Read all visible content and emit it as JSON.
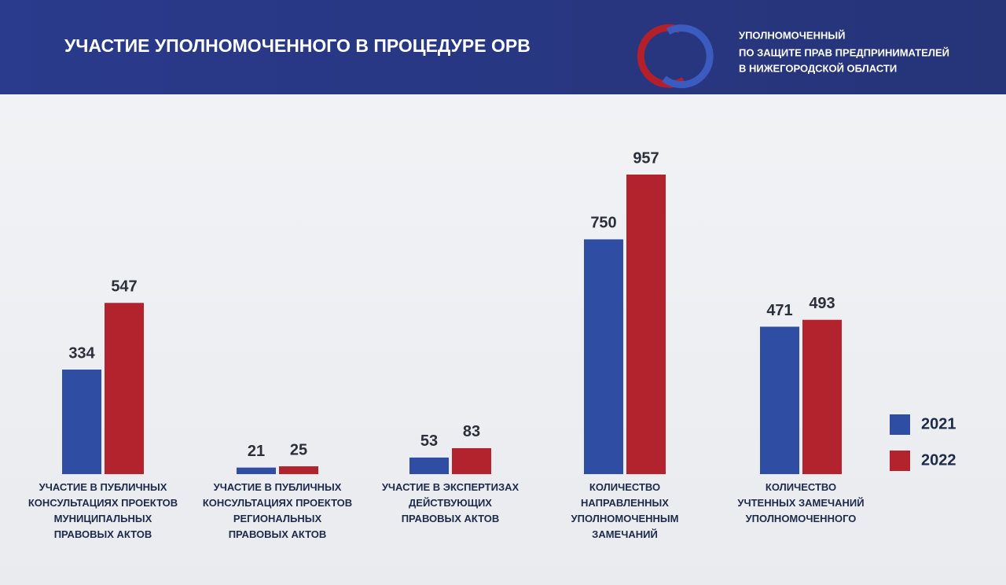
{
  "chart_data": {
    "type": "bar",
    "title": "УЧАСТИЕ УПОЛНОМОЧЕННОГО В ПРОЦЕДУРЕ ОРВ",
    "organization": [
      "УПОЛНОМОЧЕННЫЙ",
      "ПО ЗАЩИТЕ ПРАВ ПРЕДПРИНИМАТЕЛЕЙ",
      "В НИЖЕГОРОДСКОЙ ОБЛАСТИ"
    ],
    "categories": [
      "УЧАСТИЕ В ПУБЛИЧНЫХ\nКОНСУЛЬТАЦИЯХ ПРОЕКТОВ\nМУНИЦИПАЛЬНЫХ\nПРАВОВЫХ АКТОВ",
      "УЧАСТИЕ В ПУБЛИЧНЫХ\nКОНСУЛЬТАЦИЯХ ПРОЕКТОВ\nРЕГИОНАЛЬНЫХ\nПРАВОВЫХ АКТОВ",
      "УЧАСТИЕ В ЭКСПЕРТИЗАХ\nДЕЙСТВУЮЩИХ\nПРАВОВЫХ АКТОВ",
      "КОЛИЧЕСТВО\nНАПРАВЛЕННЫХ\nУПОЛНОМОЧЕННЫМ\nЗАМЕЧАНИЙ",
      "КОЛИЧЕСТВО\nУЧТЕННЫХ ЗАМЕЧАНИЙ\nУПОЛНОМОЧЕННОГО"
    ],
    "series": [
      {
        "name": "2021",
        "color": "#2f4ea3",
        "values": [
          334,
          21,
          53,
          750,
          471
        ]
      },
      {
        "name": "2022",
        "color": "#b3232d",
        "values": [
          547,
          25,
          83,
          957,
          493
        ]
      }
    ],
    "legend": "right"
  }
}
